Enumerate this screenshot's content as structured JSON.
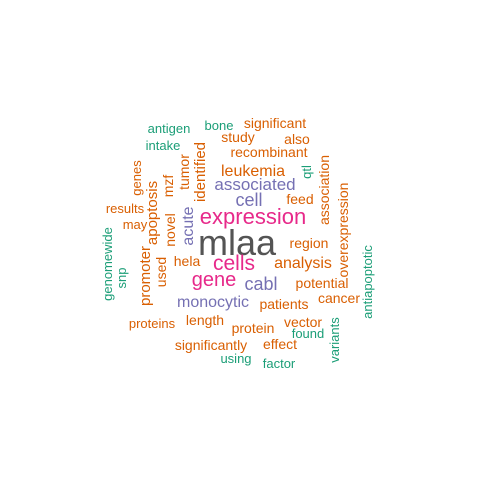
{
  "colors": {
    "dark_gray": "#545454",
    "magenta": "#E7298A",
    "purple": "#7570B3",
    "orange": "#D95F02",
    "teal": "#1B9E77",
    "background": "#FFFFFF"
  },
  "words": [
    {
      "text": "mlaa",
      "color": "#545454"
    },
    {
      "text": "expression",
      "color": "#E7298A"
    },
    {
      "text": "cells",
      "color": "#E7298A"
    },
    {
      "text": "gene",
      "color": "#E7298A"
    },
    {
      "text": "cabl",
      "color": "#7570B3"
    },
    {
      "text": "cell",
      "color": "#7570B3"
    },
    {
      "text": "associated",
      "color": "#7570B3"
    },
    {
      "text": "monocytic",
      "color": "#7570B3"
    },
    {
      "text": "acute",
      "color": "#7570B3"
    },
    {
      "text": "leukemia",
      "color": "#D95F02"
    },
    {
      "text": "analysis",
      "color": "#D95F02"
    },
    {
      "text": "recombinant",
      "color": "#D95F02"
    },
    {
      "text": "study",
      "color": "#D95F02"
    },
    {
      "text": "significant",
      "color": "#D95F02"
    },
    {
      "text": "also",
      "color": "#D95F02"
    },
    {
      "text": "feed",
      "color": "#D95F02"
    },
    {
      "text": "region",
      "color": "#D95F02"
    },
    {
      "text": "hela",
      "color": "#D95F02"
    },
    {
      "text": "potential",
      "color": "#D95F02"
    },
    {
      "text": "cancer",
      "color": "#D95F02"
    },
    {
      "text": "patients",
      "color": "#D95F02"
    },
    {
      "text": "protein",
      "color": "#D95F02"
    },
    {
      "text": "length",
      "color": "#D95F02"
    },
    {
      "text": "proteins",
      "color": "#D95F02"
    },
    {
      "text": "vector",
      "color": "#D95F02"
    },
    {
      "text": "effect",
      "color": "#D95F02"
    },
    {
      "text": "significantly",
      "color": "#D95F02"
    },
    {
      "text": "results",
      "color": "#D95F02"
    },
    {
      "text": "may",
      "color": "#D95F02"
    },
    {
      "text": "identified",
      "color": "#D95F02"
    },
    {
      "text": "tumor",
      "color": "#D95F02"
    },
    {
      "text": "mzf",
      "color": "#D95F02"
    },
    {
      "text": "novel",
      "color": "#D95F02"
    },
    {
      "text": "apoptosis",
      "color": "#D95F02"
    },
    {
      "text": "genes",
      "color": "#D95F02"
    },
    {
      "text": "promoter",
      "color": "#D95F02"
    },
    {
      "text": "used",
      "color": "#D95F02"
    },
    {
      "text": "association",
      "color": "#D95F02"
    },
    {
      "text": "overexpression",
      "color": "#D95F02"
    },
    {
      "text": "bone",
      "color": "#1B9E77"
    },
    {
      "text": "antigen",
      "color": "#1B9E77"
    },
    {
      "text": "intake",
      "color": "#1B9E77"
    },
    {
      "text": "qtl",
      "color": "#1B9E77"
    },
    {
      "text": "genomewide",
      "color": "#1B9E77"
    },
    {
      "text": "snp",
      "color": "#1B9E77"
    },
    {
      "text": "found",
      "color": "#1B9E77"
    },
    {
      "text": "variants",
      "color": "#1B9E77"
    },
    {
      "text": "antiapoptotic",
      "color": "#1B9E77"
    },
    {
      "text": "using",
      "color": "#1B9E77"
    },
    {
      "text": "factor",
      "color": "#1B9E77"
    }
  ]
}
